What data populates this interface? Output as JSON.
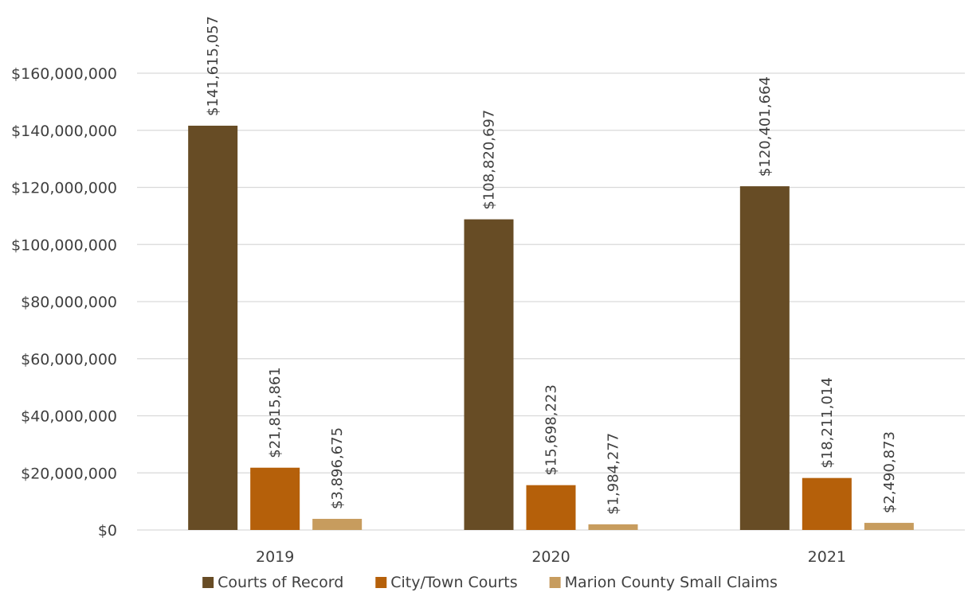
{
  "chart_data": {
    "type": "bar",
    "categories": [
      "2019",
      "2020",
      "2021"
    ],
    "series": [
      {
        "name": "Courts of Record",
        "color": "#674c25",
        "values": [
          141615057,
          108820697,
          120401664
        ],
        "labels": [
          "$141,615,057",
          "$108,820,697",
          "$120,401,664"
        ]
      },
      {
        "name": "City/Town Courts",
        "color": "#b5600a",
        "values": [
          21815861,
          15698223,
          18211014
        ],
        "labels": [
          "$21,815,861",
          "$15,698,223",
          "$18,211,014"
        ]
      },
      {
        "name": "Marion County Small Claims",
        "color": "#c79c5e",
        "values": [
          3896675,
          1984277,
          2490873
        ],
        "labels": [
          "$3,896,675",
          "$1,984,277",
          "$2,490,873"
        ]
      }
    ],
    "ylim": [
      0,
      160000000
    ],
    "yticks": [
      0,
      20000000,
      40000000,
      60000000,
      80000000,
      100000000,
      120000000,
      140000000,
      160000000
    ],
    "ytick_labels": [
      "$0",
      "$20,000,000",
      "$40,000,000",
      "$60,000,000",
      "$80,000,000",
      "$100,000,000",
      "$120,000,000",
      "$140,000,000",
      "$160,000,000"
    ],
    "grid": true,
    "legend_position": "bottom",
    "title": "",
    "xlabel": "",
    "ylabel": ""
  }
}
